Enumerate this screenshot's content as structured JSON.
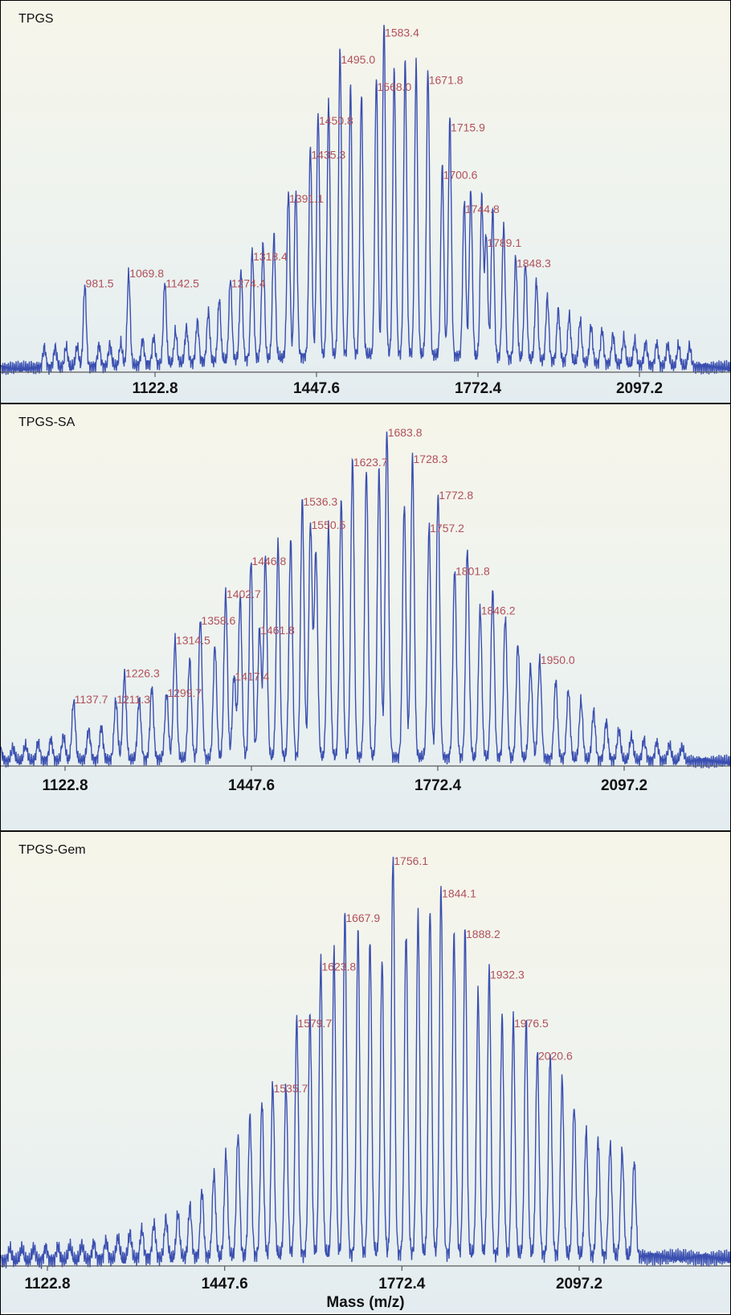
{
  "chart_data": [
    {
      "type": "line",
      "title": "TPGS",
      "xlabel": "",
      "xlim": [
        897,
        2200
      ],
      "x_ticks": [
        1122.8,
        1447.6,
        1772.4,
        2097.2
      ],
      "x_tick_labels": [
        "1122.8",
        "1447.6",
        "1772.4",
        "2097.2"
      ],
      "peak_spacing": 22,
      "peak_start": 900,
      "envelope_center": 1585,
      "envelope_width_left": 170,
      "envelope_width_right": 175,
      "baseline_level": 0.12,
      "labeled_peaks": [
        {
          "x": 981.5,
          "y": 0.24,
          "label": "981.5"
        },
        {
          "x": 1069.8,
          "y": 0.27,
          "label": "1069.8"
        },
        {
          "x": 1142.5,
          "y": 0.24,
          "label": "1142.5"
        },
        {
          "x": 1274.4,
          "y": 0.24,
          "label": "1274.4"
        },
        {
          "x": 1318.4,
          "y": 0.32,
          "label": "1318.4"
        },
        {
          "x": 1391.1,
          "y": 0.49,
          "label": "1391.1"
        },
        {
          "x": 1435.3,
          "y": 0.62,
          "label": "1435.3"
        },
        {
          "x": 1450.8,
          "y": 0.72,
          "label": "1450.8"
        },
        {
          "x": 1495.0,
          "y": 0.9,
          "label": "1495.0"
        },
        {
          "x": 1568.0,
          "y": 0.82,
          "label": "1568.0"
        },
        {
          "x": 1583.4,
          "y": 0.98,
          "label": "1583.4"
        },
        {
          "x": 1671.8,
          "y": 0.84,
          "label": "1671.8"
        },
        {
          "x": 1715.9,
          "y": 0.7,
          "label": "1715.9"
        },
        {
          "x": 1700.6,
          "y": 0.56,
          "label": "1700.6"
        },
        {
          "x": 1744.8,
          "y": 0.46,
          "label": "1744.8"
        },
        {
          "x": 1789.1,
          "y": 0.36,
          "label": "1789.1"
        },
        {
          "x": 1848.3,
          "y": 0.3,
          "label": "1848.3"
        }
      ]
    },
    {
      "type": "line",
      "title": "TPGS-SA",
      "xlabel": "",
      "xlim": [
        1000,
        2200
      ],
      "x_ticks": [
        1122.8,
        1447.6,
        1772.4,
        2097.2
      ],
      "x_tick_labels": [
        "1122.8",
        "1447.6",
        "1772.4",
        "2097.2"
      ],
      "peak_spacing": 22,
      "peak_start": 1010,
      "envelope_center": 1670,
      "envelope_width_left": 230,
      "envelope_width_right": 190,
      "baseline_level": 0.05,
      "labeled_peaks": [
        {
          "x": 1137.7,
          "y": 0.18,
          "label": "1137.7"
        },
        {
          "x": 1211.3,
          "y": 0.18,
          "label": "1211.3"
        },
        {
          "x": 1226.3,
          "y": 0.26,
          "label": "1226.3"
        },
        {
          "x": 1299.7,
          "y": 0.2,
          "label": "1299.7"
        },
        {
          "x": 1314.5,
          "y": 0.36,
          "label": "1314.5"
        },
        {
          "x": 1358.6,
          "y": 0.42,
          "label": "1358.6"
        },
        {
          "x": 1402.7,
          "y": 0.5,
          "label": "1402.7"
        },
        {
          "x": 1417.4,
          "y": 0.25,
          "label": "1417.4"
        },
        {
          "x": 1446.8,
          "y": 0.6,
          "label": "1446.8"
        },
        {
          "x": 1461.8,
          "y": 0.39,
          "label": "1461.8"
        },
        {
          "x": 1536.3,
          "y": 0.78,
          "label": "1536.3"
        },
        {
          "x": 1550.5,
          "y": 0.71,
          "label": "1550.5"
        },
        {
          "x": 1623.7,
          "y": 0.9,
          "label": "1623.7"
        },
        {
          "x": 1683.8,
          "y": 0.99,
          "label": "1683.8"
        },
        {
          "x": 1728.3,
          "y": 0.91,
          "label": "1728.3"
        },
        {
          "x": 1772.8,
          "y": 0.8,
          "label": "1772.8"
        },
        {
          "x": 1757.2,
          "y": 0.7,
          "label": "1757.2"
        },
        {
          "x": 1801.8,
          "y": 0.57,
          "label": "1801.8"
        },
        {
          "x": 1846.2,
          "y": 0.45,
          "label": "1846.2"
        },
        {
          "x": 1950.0,
          "y": 0.3,
          "label": "1950.0"
        }
      ]
    },
    {
      "type": "line",
      "title": "TPGS-Gem",
      "xlabel": "Mass (m/z)",
      "xlim": [
        1000,
        2200
      ],
      "x_ticks": [
        1122.8,
        1447.6,
        1772.4,
        2097.2
      ],
      "x_tick_labels": [
        "1122.8",
        "1447.6",
        "1772.4",
        "2097.2"
      ],
      "peak_spacing": 22,
      "peak_start": 1010,
      "envelope_center": 1760,
      "envelope_width_left": 190,
      "envelope_width_right": 260,
      "baseline_level": 0.06,
      "labeled_peaks": [
        {
          "x": 1535.7,
          "y": 0.42,
          "label": "1535.7"
        },
        {
          "x": 1579.7,
          "y": 0.58,
          "label": "1579.7"
        },
        {
          "x": 1623.8,
          "y": 0.72,
          "label": "1623.8"
        },
        {
          "x": 1667.9,
          "y": 0.84,
          "label": "1667.9"
        },
        {
          "x": 1756.1,
          "y": 0.98,
          "label": "1756.1"
        },
        {
          "x": 1844.1,
          "y": 0.9,
          "label": "1844.1"
        },
        {
          "x": 1888.2,
          "y": 0.8,
          "label": "1888.2"
        },
        {
          "x": 1932.3,
          "y": 0.7,
          "label": "1932.3"
        },
        {
          "x": 1976.5,
          "y": 0.58,
          "label": "1976.5"
        },
        {
          "x": 2020.6,
          "y": 0.5,
          "label": "2020.6"
        }
      ]
    }
  ],
  "colors": {
    "trace": "#3a4fb0",
    "peak_label": "#b0505a",
    "axis": "#5a5a5a",
    "tick_text": "#111111"
  }
}
